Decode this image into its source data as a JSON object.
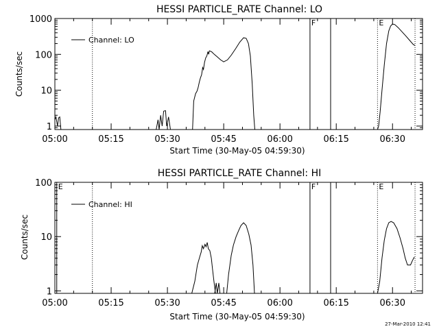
{
  "footer": {
    "timestamp": "27-Mar-2010 12:41"
  },
  "chart_data": [
    {
      "type": "line",
      "title": "HESSI PARTICLE_RATE Channel: LO",
      "xlabel": "Start Time (30-May-05 04:59:30)",
      "ylabel": "Counts/sec",
      "yscale": "log",
      "xlim": [
        "05:00",
        "06:38"
      ],
      "ylim": [
        0.8,
        1000
      ],
      "x_ticks": [
        "05:00",
        "05:15",
        "05:30",
        "05:45",
        "06:00",
        "06:15",
        "06:30"
      ],
      "y_ticks": [
        "1",
        "10",
        "100",
        "1000"
      ],
      "legend": {
        "position": "top-left",
        "entries": [
          "Channel: LO"
        ]
      },
      "markers": [
        {
          "time": "05:10",
          "style": "dotted",
          "label": ""
        },
        {
          "time": "06:08",
          "style": "solid",
          "label": "F"
        },
        {
          "time": "06:13.5",
          "style": "solid",
          "label": ""
        },
        {
          "time": "06:26",
          "style": "dotted",
          "label": "E"
        },
        {
          "time": "06:36",
          "style": "dotted",
          "label": ""
        }
      ],
      "series": [
        {
          "name": "Channel: LO",
          "segments": [
            [
              [
                "05:00.0",
                1.5
              ],
              [
                "05:00.3",
                1.8
              ],
              [
                "05:00.7",
                1.0
              ],
              [
                "05:01.0",
                1.7
              ],
              [
                "05:01.3",
                1.8
              ],
              [
                "05:01.6",
                0.8
              ]
            ],
            [
              [
                "05:27.0",
                0.8
              ],
              [
                "05:27.5",
                1.5
              ],
              [
                "05:27.8",
                0.8
              ],
              [
                "05:28.2",
                2.0
              ],
              [
                "05:28.6",
                1.0
              ],
              [
                "05:29.0",
                2.6
              ],
              [
                "05:29.5",
                2.7
              ],
              [
                "05:29.8",
                1.0
              ],
              [
                "05:30.3",
                1.8
              ],
              [
                "05:30.8",
                0.8
              ]
            ],
            [
              [
                "05:36.7",
                0.8
              ],
              [
                "05:37.0",
                5.0
              ],
              [
                "05:37.5",
                8.0
              ],
              [
                "05:37.9",
                9.5
              ],
              [
                "05:38.2",
                12
              ],
              [
                "05:38.5",
                17
              ],
              [
                "05:38.8",
                22
              ],
              [
                "05:39.1",
                27
              ],
              [
                "05:39.4",
                43
              ],
              [
                "05:39.6",
                38
              ],
              [
                "05:39.9",
                60
              ],
              [
                "05:40.2",
                80
              ],
              [
                "05:40.5",
                90
              ],
              [
                "05:40.8",
                120
              ],
              [
                "05:41.0",
                100
              ],
              [
                "05:41.2",
                125
              ],
              [
                "05:41.8",
                118
              ],
              [
                "05:42.5",
                100
              ],
              [
                "05:43.3",
                85
              ],
              [
                "05:44.2",
                70
              ],
              [
                "05:45.0",
                62
              ],
              [
                "05:46.0",
                70
              ],
              [
                "05:47.0",
                95
              ],
              [
                "05:48.2",
                145
              ],
              [
                "05:49.3",
                220
              ],
              [
                "05:50.3",
                290
              ],
              [
                "05:51.0",
                280
              ],
              [
                "05:51.6",
                200
              ],
              [
                "05:52.1",
                90
              ],
              [
                "05:52.6",
                15
              ],
              [
                "05:53.0",
                2
              ],
              [
                "05:53.3",
                0.8
              ]
            ],
            [
              [
                "06:26.0",
                0.8
              ],
              [
                "06:26.3",
                1.0
              ],
              [
                "06:26.7",
                2.5
              ],
              [
                "06:27.2",
                10
              ],
              [
                "06:27.8",
                50
              ],
              [
                "06:28.4",
                200
              ],
              [
                "06:29.0",
                450
              ],
              [
                "06:29.5",
                620
              ],
              [
                "06:30.0",
                700
              ],
              [
                "06:30.6",
                680
              ],
              [
                "06:31.5",
                560
              ],
              [
                "06:32.5",
                430
              ],
              [
                "06:33.5",
                330
              ],
              [
                "06:34.5",
                250
              ],
              [
                "06:35.5",
                190
              ],
              [
                "06:36.0",
                175
              ]
            ]
          ]
        }
      ]
    },
    {
      "type": "line",
      "title": "HESSI PARTICLE_RATE Channel: HI",
      "xlabel": "Start Time (30-May-05 04:59:30)",
      "ylabel": "Counts/sec",
      "yscale": "log",
      "xlim": [
        "05:00",
        "06:38"
      ],
      "ylim": [
        0.9,
        100
      ],
      "x_ticks": [
        "05:00",
        "05:15",
        "05:30",
        "05:45",
        "06:00",
        "06:15",
        "06:30"
      ],
      "y_ticks": [
        "1",
        "10",
        "100"
      ],
      "legend": {
        "position": "top-left",
        "entries": [
          "Channel: HI"
        ]
      },
      "markers": [
        {
          "time": "05:00.5",
          "style": "solid",
          "label": "E"
        },
        {
          "time": "05:10",
          "style": "dotted",
          "label": ""
        },
        {
          "time": "06:08",
          "style": "solid",
          "label": "F"
        },
        {
          "time": "06:13.5",
          "style": "solid",
          "label": ""
        },
        {
          "time": "06:26",
          "style": "dotted",
          "label": "E"
        },
        {
          "time": "06:36",
          "style": "dotted",
          "label": ""
        }
      ],
      "series": [
        {
          "name": "Channel: HI",
          "segments": [
            [
              [
                "05:36.5",
                0.9
              ],
              [
                "05:37.3",
                1.5
              ],
              [
                "05:38.0",
                3.0
              ],
              [
                "05:38.6",
                4.2
              ],
              [
                "05:39.0",
                5.2
              ],
              [
                "05:39.3",
                6.8
              ],
              [
                "05:39.6",
                6.0
              ],
              [
                "05:40.0",
                7.2
              ],
              [
                "05:40.3",
                6.5
              ],
              [
                "05:40.6",
                7.8
              ],
              [
                "05:40.9",
                6.0
              ],
              [
                "05:41.3",
                5.5
              ],
              [
                "05:41.7",
                4.0
              ],
              [
                "05:42.0",
                2.6
              ],
              [
                "05:42.4",
                1.5
              ],
              [
                "05:42.8",
                0.9
              ]
            ],
            [
              [
                "05:42.6",
                0.9
              ],
              [
                "05:43.0",
                1.4
              ],
              [
                "05:43.3",
                0.9
              ],
              [
                "05:43.7",
                1.4
              ],
              [
                "05:44.0",
                0.9
              ]
            ],
            [
              [
                "05:45.8",
                0.9
              ],
              [
                "05:46.3",
                2.0
              ],
              [
                "05:47.0",
                4.5
              ],
              [
                "05:47.6",
                7.0
              ],
              [
                "05:48.3",
                10
              ],
              [
                "05:49.0",
                13
              ],
              [
                "05:49.6",
                16
              ],
              [
                "05:50.3",
                18
              ],
              [
                "05:51.0",
                16
              ],
              [
                "05:51.7",
                11
              ],
              [
                "05:52.3",
                7
              ],
              [
                "05:52.8",
                3
              ],
              [
                "05:53.2",
                0.9
              ]
            ],
            [
              [
                "06:26.0",
                0.9
              ],
              [
                "06:26.6",
                1.5
              ],
              [
                "06:27.2",
                4.0
              ],
              [
                "06:27.8",
                8.5
              ],
              [
                "06:28.4",
                14
              ],
              [
                "06:29.0",
                18
              ],
              [
                "06:29.6",
                19
              ],
              [
                "06:30.3",
                18
              ],
              [
                "06:31.2",
                14
              ],
              [
                "06:32.0",
                9.5
              ],
              [
                "06:32.8",
                6.0
              ],
              [
                "06:33.4",
                4.0
              ],
              [
                "06:34.0",
                3.0
              ],
              [
                "06:34.8",
                3.0
              ],
              [
                "06:35.3",
                3.6
              ],
              [
                "06:35.8",
                4.2
              ]
            ]
          ]
        }
      ]
    }
  ]
}
